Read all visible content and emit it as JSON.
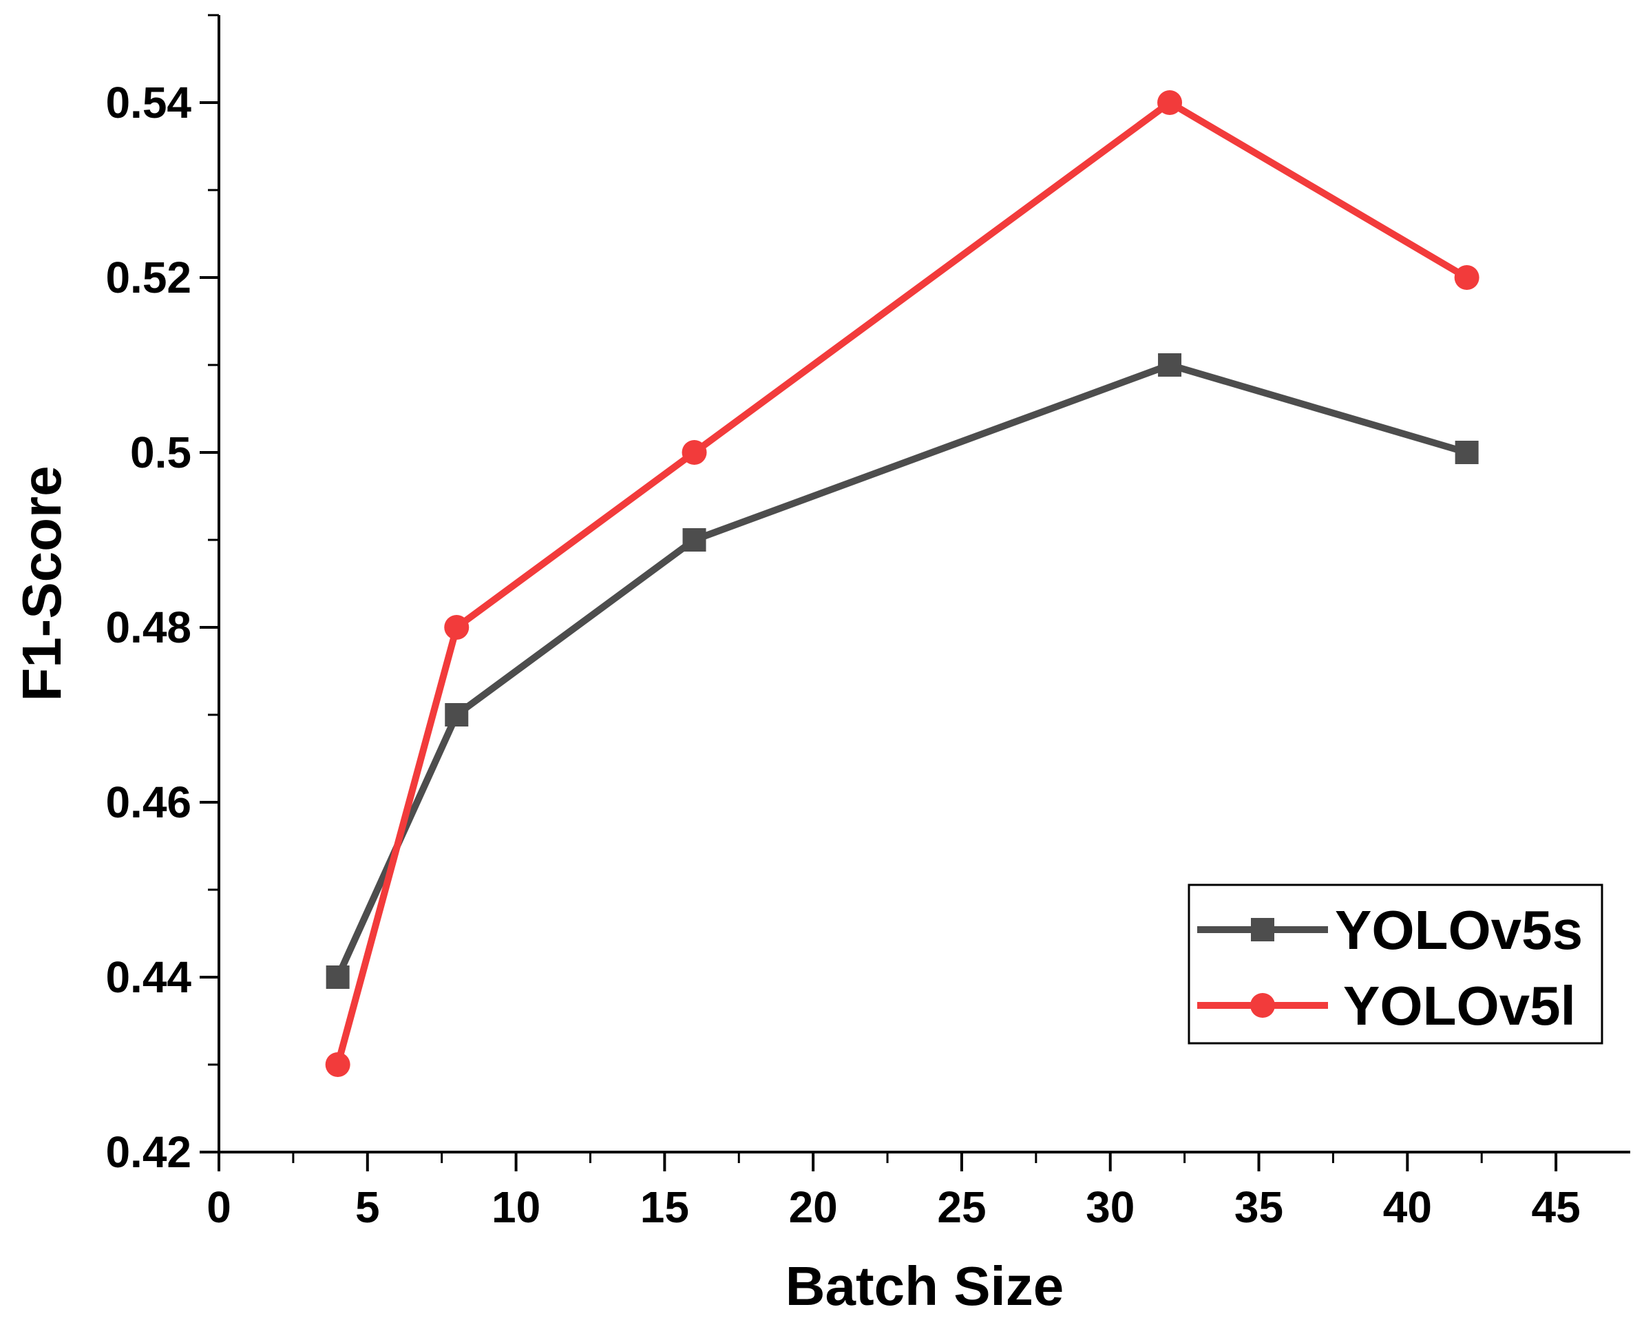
{
  "chart_data": {
    "type": "line",
    "title": "",
    "xlabel": "Batch Size",
    "ylabel": "F1-Score",
    "xlim": [
      0,
      47.5
    ],
    "ylim": [
      0.42,
      0.55
    ],
    "xticks": [
      0,
      5,
      10,
      15,
      20,
      25,
      30,
      35,
      40,
      45
    ],
    "yticks": [
      0.42,
      0.44,
      0.46,
      0.48,
      0.5,
      0.52,
      0.54
    ],
    "ytick_labels": [
      "0.42",
      "0.44",
      "0.46",
      "0.48",
      "0.5",
      "0.52",
      "0.54"
    ],
    "grid": false,
    "legend_position": "bottom-right",
    "series": [
      {
        "name": "YOLOv5s",
        "color": "#4d4d4d",
        "marker": "square",
        "x": [
          4,
          8,
          16,
          32,
          42
        ],
        "y": [
          0.44,
          0.47,
          0.49,
          0.51,
          0.5
        ]
      },
      {
        "name": "YOLOv5l",
        "color": "#f23b3b",
        "marker": "circle",
        "x": [
          4,
          8,
          16,
          32,
          42
        ],
        "y": [
          0.43,
          0.48,
          0.5,
          0.54,
          0.52
        ]
      }
    ]
  }
}
